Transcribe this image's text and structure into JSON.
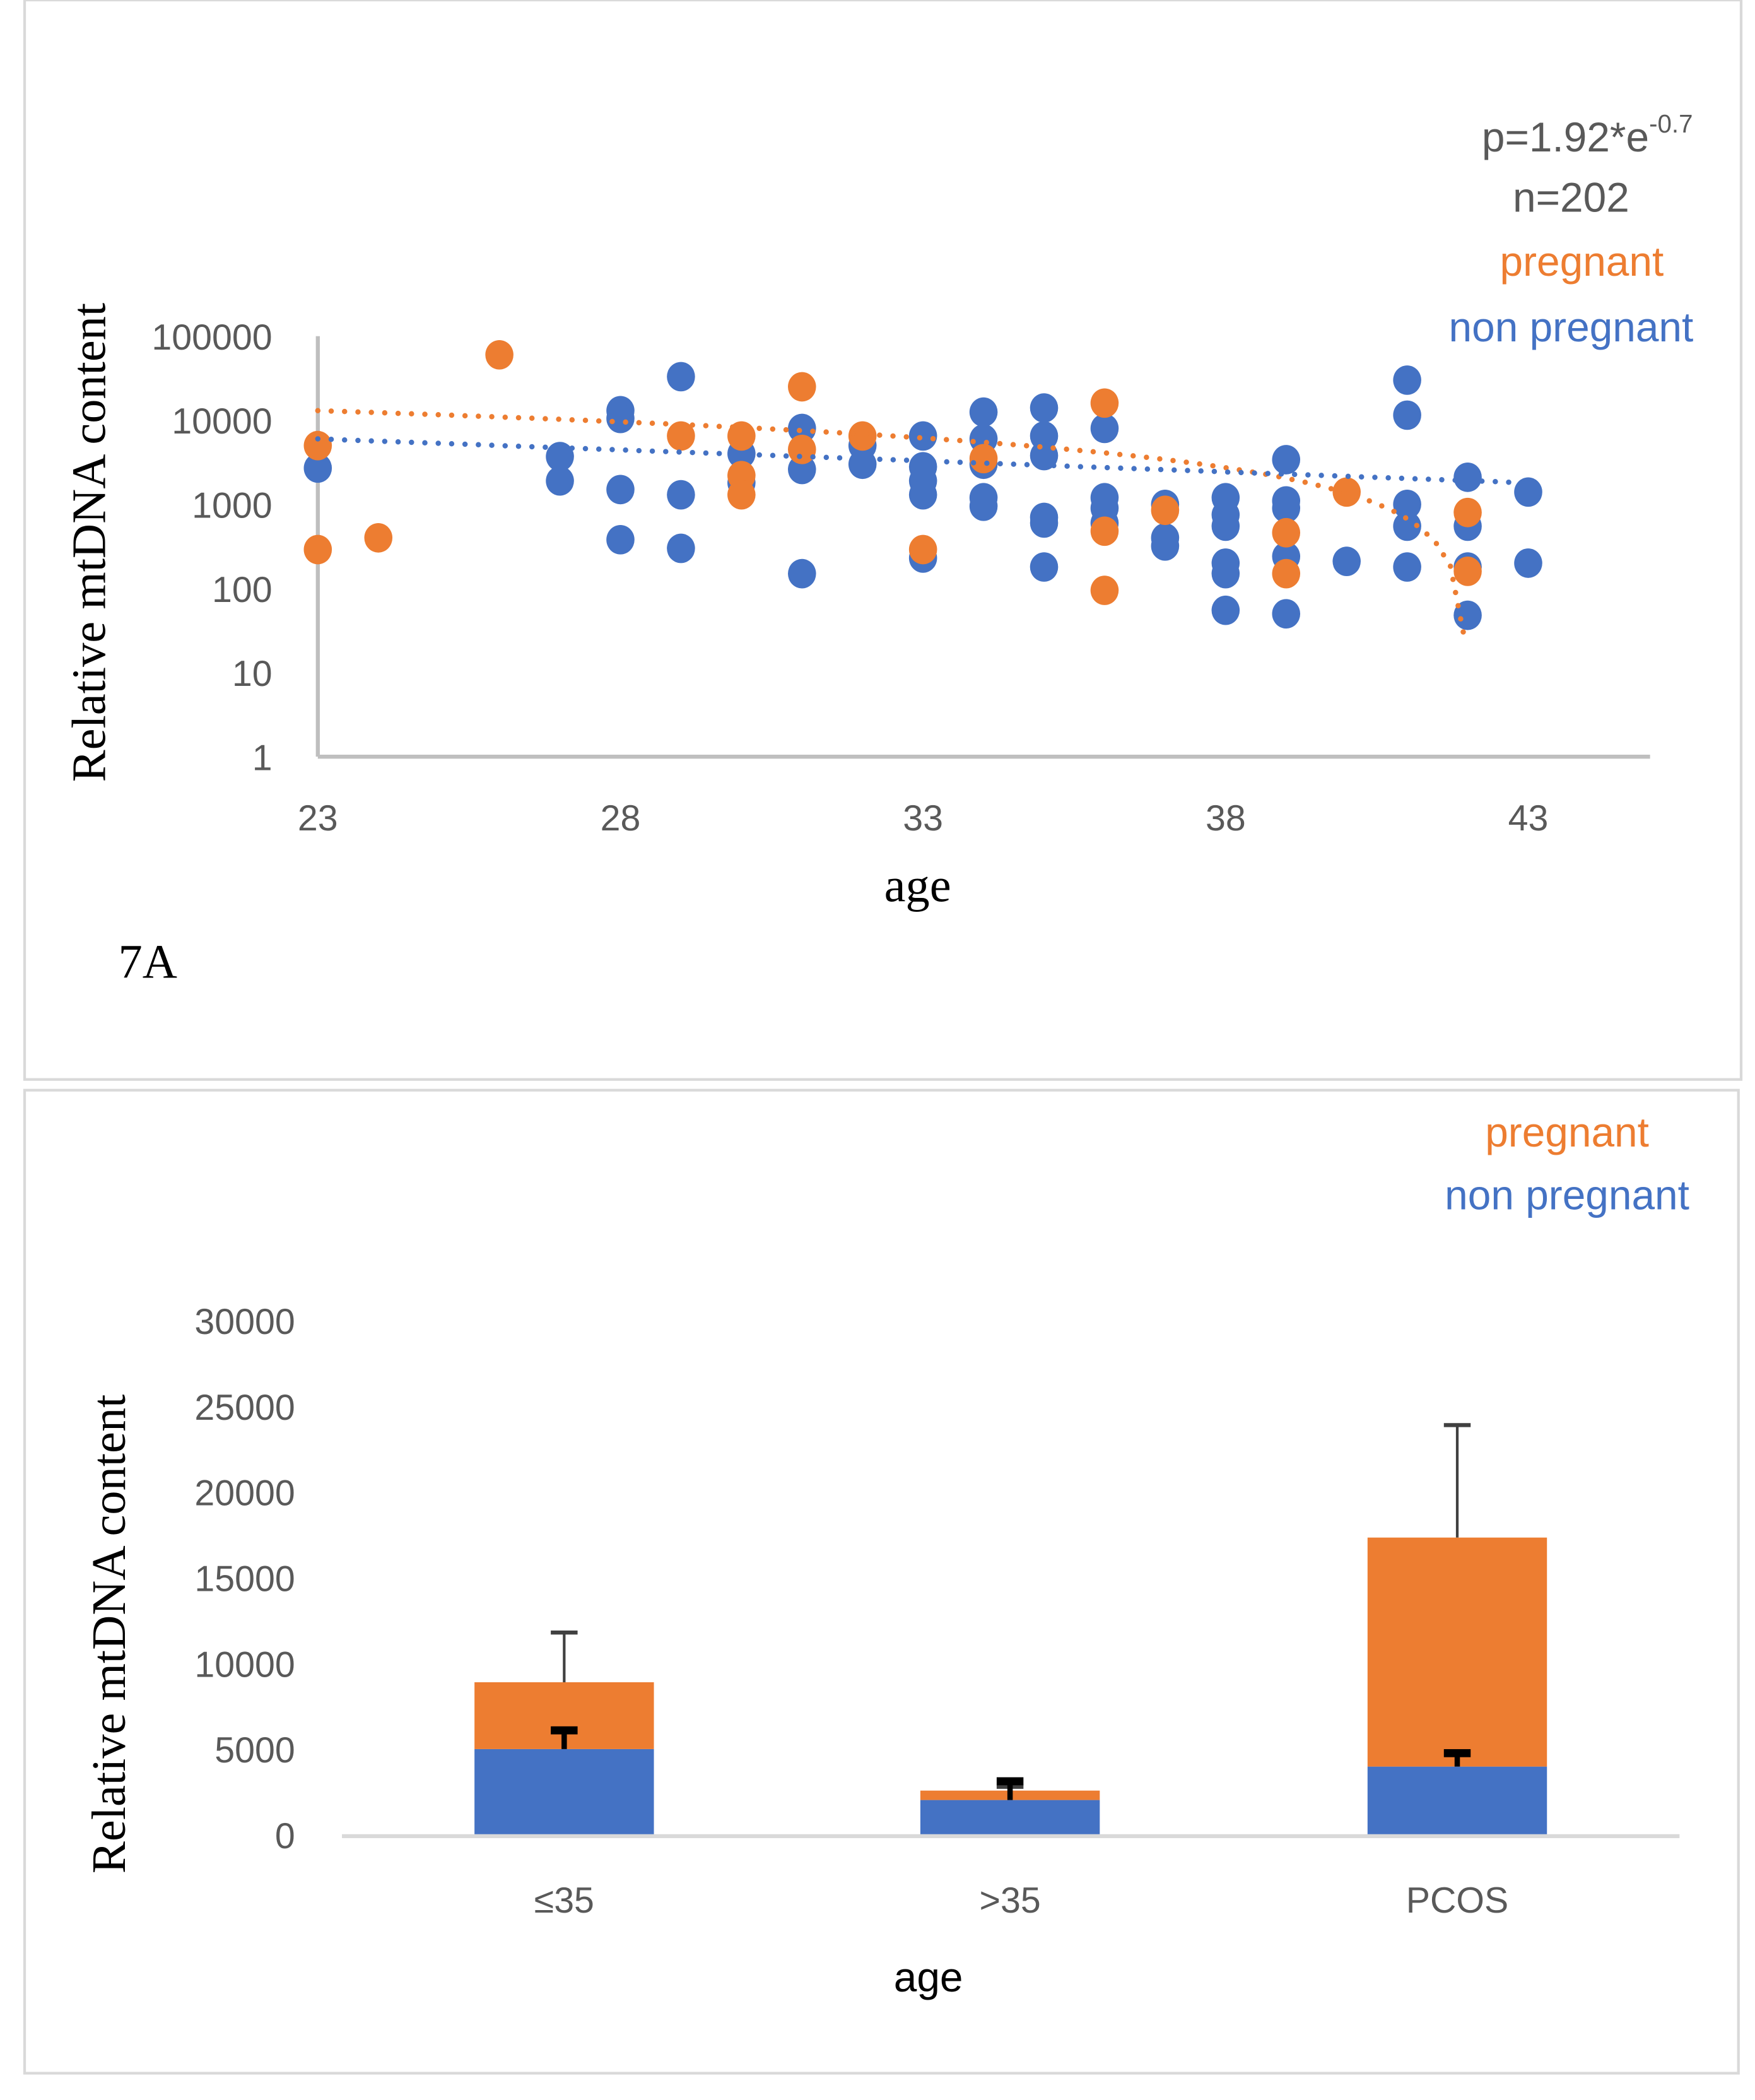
{
  "colors": {
    "pregnant": "#ED7D31",
    "non_pregnant": "#4472C4",
    "axis": "#BFBFBF",
    "text": "#595959",
    "error_bar_pregnant": "#404040",
    "error_bar_non_pregnant": "#000000"
  },
  "chart_data": [
    {
      "type": "scatter",
      "panel_label": "7A",
      "xlabel": "age",
      "ylabel": "Relative mtDNA content",
      "xlim": [
        23,
        45
      ],
      "x_ticks": [
        "23",
        "28",
        "33",
        "38",
        "43"
      ],
      "y_scale": "log",
      "ylim": [
        1,
        100000
      ],
      "y_ticks": [
        "1",
        "10",
        "100",
        "1000",
        "10000",
        "100000"
      ],
      "grid": false,
      "annotations": {
        "p_value_base": "p=1.92*e",
        "p_value_exp": "-0.7",
        "n": "n=202"
      },
      "legend_position": "top-right",
      "series": [
        {
          "name": "pregnant",
          "color": "#ED7D31",
          "trendline": {
            "style": "dotted",
            "type": "linear",
            "from": [
              23,
              13000
            ],
            "to": [
              41.95,
              25
            ]
          },
          "points": [
            [
              23,
              5000
            ],
            [
              23,
              290
            ],
            [
              24,
              400
            ],
            [
              26,
              60000
            ],
            [
              29,
              6500
            ],
            [
              30,
              6500
            ],
            [
              30,
              2200
            ],
            [
              30,
              1300
            ],
            [
              31,
              25000
            ],
            [
              31,
              4500
            ],
            [
              32,
              6500
            ],
            [
              33,
              290
            ],
            [
              34,
              3500
            ],
            [
              36,
              16000
            ],
            [
              36,
              480
            ],
            [
              36,
              95
            ],
            [
              37,
              850
            ],
            [
              39,
              460
            ],
            [
              39,
              150
            ],
            [
              40,
              1400
            ],
            [
              42,
              800
            ],
            [
              42,
              160
            ]
          ]
        },
        {
          "name": "non pregnant",
          "color": "#4472C4",
          "trendline": {
            "style": "dotted",
            "type": "exponential",
            "from": [
              23,
              6000
            ],
            "to": [
              43,
              1800
            ]
          },
          "points": [
            [
              23,
              2700
            ],
            [
              27,
              3700
            ],
            [
              27,
              1900
            ],
            [
              28,
              13000
            ],
            [
              28,
              10500
            ],
            [
              28,
              1500
            ],
            [
              28,
              380
            ],
            [
              29,
              33000
            ],
            [
              29,
              1300
            ],
            [
              29,
              300
            ],
            [
              30,
              4000
            ],
            [
              30,
              1800
            ],
            [
              31,
              8000
            ],
            [
              31,
              2600
            ],
            [
              31,
              150
            ],
            [
              32,
              3000
            ],
            [
              32,
              5000
            ],
            [
              33,
              6500
            ],
            [
              33,
              2800
            ],
            [
              33,
              1900
            ],
            [
              33,
              1300
            ],
            [
              33,
              230
            ],
            [
              34,
              12500
            ],
            [
              34,
              6000
            ],
            [
              34,
              3000
            ],
            [
              34,
              1200
            ],
            [
              34,
              950
            ],
            [
              35,
              14000
            ],
            [
              35,
              6500
            ],
            [
              35,
              3800
            ],
            [
              35,
              700
            ],
            [
              35,
              600
            ],
            [
              35,
              180
            ],
            [
              36,
              8000
            ],
            [
              36,
              1200
            ],
            [
              36,
              900
            ],
            [
              36,
              600
            ],
            [
              37,
              1000
            ],
            [
              37,
              400
            ],
            [
              37,
              320
            ],
            [
              38,
              1200
            ],
            [
              38,
              750
            ],
            [
              38,
              550
            ],
            [
              38,
              200
            ],
            [
              38,
              150
            ],
            [
              38,
              55
            ],
            [
              39,
              3400
            ],
            [
              39,
              1100
            ],
            [
              39,
              900
            ],
            [
              39,
              240
            ],
            [
              39,
              50
            ],
            [
              40,
              210
            ],
            [
              41,
              30000
            ],
            [
              41,
              11500
            ],
            [
              41,
              1000
            ],
            [
              41,
              550
            ],
            [
              41,
              180
            ],
            [
              42,
              2100
            ],
            [
              42,
              550
            ],
            [
              42,
              180
            ],
            [
              42,
              48
            ],
            [
              43,
              1400
            ],
            [
              43,
              200
            ]
          ]
        }
      ]
    },
    {
      "type": "bar",
      "stacked": true,
      "xlabel": "age",
      "ylabel": "Relative mtDNA content",
      "categories": [
        "≤35",
        ">35",
        "PCOS"
      ],
      "ylim": [
        0,
        30000
      ],
      "y_ticks": [
        "0",
        "5000",
        "10000",
        "15000",
        "20000",
        "25000",
        "30000"
      ],
      "grid": false,
      "legend_position": "top-right",
      "series": [
        {
          "name": "non pregnant",
          "color": "#4472C4",
          "values": [
            5000,
            2030,
            3980
          ],
          "error_top": [
            6250,
            3280,
            4920
          ]
        },
        {
          "name": "pregnant",
          "color": "#ED7D31",
          "values": [
            3900,
            550,
            13360
          ],
          "error_top": [
            11800,
            2800,
            23900
          ]
        }
      ]
    }
  ]
}
